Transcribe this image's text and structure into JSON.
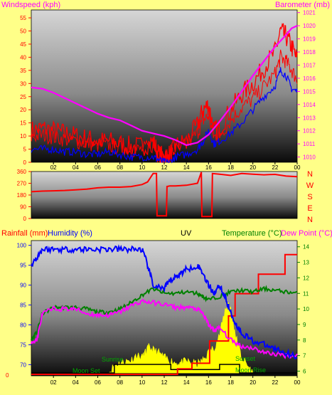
{
  "header": {
    "windspeed_label": "Windspeed (kph)",
    "barometer_label": "Barometer (mb)",
    "date_caption": ""
  },
  "x_ticks": [
    "02",
    "04",
    "06",
    "08",
    "10",
    "12",
    "14",
    "16",
    "18",
    "20",
    "22",
    "00"
  ],
  "compass": [
    "N",
    "W",
    "S",
    "E",
    "N"
  ],
  "colors": {
    "background": "#ffff88",
    "wind": "#ff0000",
    "wind_avg": "#0000ff",
    "barometer": "#ff00ff",
    "direction": "#ff0000",
    "humidity": "#0000ff",
    "temperature": "#008000",
    "dewpoint": "#ff00ff",
    "rain": "#ff0000",
    "uv": "#ffff00",
    "sun_moon": "#000000"
  },
  "bottom_header": {
    "rainfall_label": "Rainfall (mm)",
    "humidity_label": "Humidity (%)",
    "uv_label": "UV",
    "temperature_label": "Temperature (°C)",
    "dewpoint_label": "Dew Point (°C)"
  },
  "annotations": {
    "sunrise": "Sunrise",
    "moon_set": "Moon Set",
    "moon_rise": "Moon Rise",
    "sunset": "Sunset"
  },
  "chart_data": [
    {
      "type": "line",
      "name": "wind_and_pressure",
      "x_unit": "hour",
      "xlim": [
        0,
        24
      ],
      "y_left_ticks": [
        0,
        5,
        10,
        15,
        20,
        25,
        30,
        35,
        40,
        45,
        50,
        55
      ],
      "y_left_range": [
        0,
        58
      ],
      "y_right_ticks": [
        1010,
        1011,
        1012,
        1013,
        1014,
        1015,
        1016,
        1017,
        1018,
        1019,
        1020,
        1021
      ],
      "y_right_range": [
        1009.6,
        1021.2
      ],
      "grid": false,
      "series": [
        {
          "axis": "left",
          "style": "band",
          "x": [
            0,
            1,
            2,
            3,
            4,
            5,
            6,
            7,
            8,
            9,
            10,
            11,
            11.5,
            12,
            12.5,
            13,
            14,
            15,
            15.5,
            16,
            16.5,
            17,
            18,
            19,
            20,
            21,
            22,
            22.5,
            23,
            23.5,
            24
          ],
          "y": [
            12,
            13,
            12,
            11,
            10,
            9,
            8,
            8,
            7,
            6,
            6,
            8,
            3,
            2,
            3,
            6,
            8,
            14,
            20,
            22,
            12,
            13,
            20,
            26,
            30,
            36,
            42,
            50,
            48,
            44,
            39
          ]
        },
        {
          "axis": "left",
          "style": "line",
          "x": [
            0,
            1,
            2,
            3,
            4,
            5,
            6,
            7,
            8,
            9,
            10,
            11,
            11.5,
            12,
            12.5,
            13,
            14,
            15,
            15.5,
            16,
            16.5,
            17,
            18,
            19,
            20,
            21,
            22,
            22.5,
            23,
            23.5,
            24
          ],
          "y": [
            5,
            5,
            5,
            4,
            4,
            3,
            3,
            4,
            3,
            2,
            2,
            2,
            1,
            0,
            0,
            2,
            3,
            5,
            8,
            12,
            7,
            8,
            11,
            15,
            20,
            25,
            29,
            35,
            33,
            28,
            27
          ]
        },
        {
          "axis": "right",
          "style": "line",
          "x": [
            0,
            1,
            2,
            3,
            4,
            5,
            6,
            7,
            8,
            9,
            10,
            11,
            12,
            13,
            14,
            15,
            16,
            17,
            18,
            19,
            20,
            21,
            22,
            23,
            23.5,
            24
          ],
          "y": [
            1015.3,
            1015.2,
            1014.9,
            1014.5,
            1014.1,
            1013.7,
            1013.3,
            1013.0,
            1012.8,
            1012.4,
            1012.0,
            1011.8,
            1011.6,
            1011.3,
            1010.9,
            1011.1,
            1011.7,
            1012.7,
            1013.8,
            1015.0,
            1016.2,
            1017.3,
            1018.4,
            1019.3,
            1019.8,
            1020.0
          ]
        }
      ]
    },
    {
      "type": "line",
      "name": "wind_direction",
      "x_unit": "hour",
      "xlim": [
        0,
        24
      ],
      "y_ticks": [
        0,
        90,
        180,
        270,
        360
      ],
      "y_range": [
        0,
        360
      ],
      "series": [
        {
          "x": [
            0,
            1,
            2,
            3,
            4,
            5,
            6,
            7,
            8,
            9,
            10,
            10.5,
            11,
            11.3,
            11.35,
            12.2,
            12.25,
            12.5,
            13,
            14,
            15,
            15.35,
            15.4,
            16.3,
            16.35,
            17,
            18,
            19,
            20,
            21,
            22,
            23,
            24
          ],
          "y": [
            205,
            210,
            212,
            215,
            220,
            225,
            235,
            240,
            240,
            245,
            260,
            280,
            345,
            345,
            20,
            20,
            245,
            250,
            250,
            255,
            270,
            355,
            15,
            15,
            345,
            340,
            330,
            345,
            340,
            335,
            338,
            325,
            320
          ]
        }
      ]
    },
    {
      "type": "line",
      "name": "humidity_temperature_rain_uv",
      "x_unit": "hour",
      "xlim": [
        0,
        24
      ],
      "y_left_ticks": [
        70,
        75,
        80,
        85,
        90,
        95,
        100
      ],
      "y_left_range": [
        67.2,
        101.2
      ],
      "rain_zero_label": "0",
      "y_right_ticks": [
        6,
        7,
        8,
        9,
        10,
        11,
        12,
        13,
        14
      ],
      "y_right_range": [
        5.7,
        14.4
      ],
      "series": [
        {
          "axis": "left",
          "style": "line",
          "x": [
            0,
            0.5,
            1,
            2,
            3,
            4,
            5,
            6,
            7,
            8,
            9,
            10,
            10.5,
            11,
            12,
            12.5,
            13,
            13.5,
            14,
            15,
            15.5,
            16,
            16.5,
            17,
            17.5,
            18,
            18.5,
            19,
            20,
            21,
            22,
            23,
            24
          ],
          "y": [
            95,
            97,
            99,
            99,
            99,
            99,
            99,
            99,
            99,
            99,
            99,
            99,
            95,
            90,
            89,
            91,
            92,
            93,
            94,
            95,
            93,
            90,
            88,
            90,
            87,
            83,
            80,
            78,
            76,
            75,
            74,
            73,
            72
          ]
        },
        {
          "axis": "right",
          "style": "line",
          "x": [
            0,
            0.5,
            1,
            2,
            3,
            4,
            5,
            6,
            7,
            8,
            9,
            10,
            11,
            12,
            13,
            14,
            15,
            15.5,
            16,
            17,
            18,
            19,
            20,
            21,
            22,
            23,
            24
          ],
          "y": [
            8,
            8.5,
            9.7,
            10.1,
            10.1,
            10.1,
            10.0,
            9.8,
            9.8,
            10.0,
            10.4,
            10.9,
            11.3,
            11.0,
            11.0,
            11.1,
            11.0,
            10.8,
            10.6,
            10.8,
            11.1,
            11.2,
            11.1,
            11.3,
            11.2,
            11.1,
            11.0
          ]
        },
        {
          "axis": "right",
          "style": "line",
          "x": [
            0,
            0.5,
            1,
            2,
            3,
            4,
            5,
            6,
            7,
            8,
            9,
            10,
            11,
            12,
            13,
            14,
            15,
            15.5,
            16,
            16.5,
            17,
            18,
            19,
            20,
            21,
            22,
            23,
            24
          ],
          "y": [
            7.9,
            8,
            9.7,
            10.0,
            10.0,
            10.0,
            9.7,
            9.6,
            9.6,
            9.8,
            10.2,
            10.5,
            10.4,
            10.3,
            10.1,
            10.1,
            10.0,
            9.7,
            9.0,
            8.6,
            8.8,
            8.0,
            7.6,
            7.5,
            7.2,
            7.1,
            7.0,
            7.0
          ]
        },
        {
          "axis": "left_rain",
          "style": "step",
          "x": [
            0,
            13.2,
            13.2,
            14.5,
            14.5,
            16.1,
            16.1,
            17.8,
            17.8,
            18.4,
            18.4,
            20.5,
            20.5,
            22.9,
            22.9,
            24
          ],
          "y": [
            0,
            0,
            0.2,
            0.2,
            0.4,
            0.4,
            1.2,
            1.2,
            2.1,
            2.1,
            2.9,
            2.9,
            3.6,
            3.6,
            4.3,
            4.3
          ]
        },
        {
          "axis": "uv",
          "style": "area",
          "x": [
            7,
            7.5,
            8,
            8.5,
            9,
            9.5,
            10,
            10.3,
            10.6,
            11,
            11.5,
            12,
            12.5,
            13,
            13.5,
            14,
            14.5,
            15,
            15.5,
            16,
            16.5,
            17,
            17.5,
            17.8,
            18,
            18.3,
            18.6,
            19,
            19.5,
            20
          ],
          "y": [
            0,
            0.3,
            0.4,
            0.45,
            0.5,
            0.7,
            0.6,
            0.8,
            1.0,
            0.9,
            0.8,
            0.6,
            0.5,
            0.4,
            0.4,
            0.45,
            0.4,
            0.35,
            0.5,
            0.8,
            1.0,
            1.5,
            2.5,
            2.8,
            2.5,
            1.8,
            1.2,
            0.6,
            0.3,
            0
          ]
        },
        {
          "axis": "sun_moon",
          "style": "step",
          "x": [
            0,
            7.5,
            7.5,
            12.6,
            12.6,
            17,
            17,
            18.8,
            18.8,
            24
          ],
          "y": [
            0,
            0,
            1,
            1,
            0.4,
            0.4,
            1,
            1,
            0,
            0
          ]
        }
      ]
    }
  ]
}
